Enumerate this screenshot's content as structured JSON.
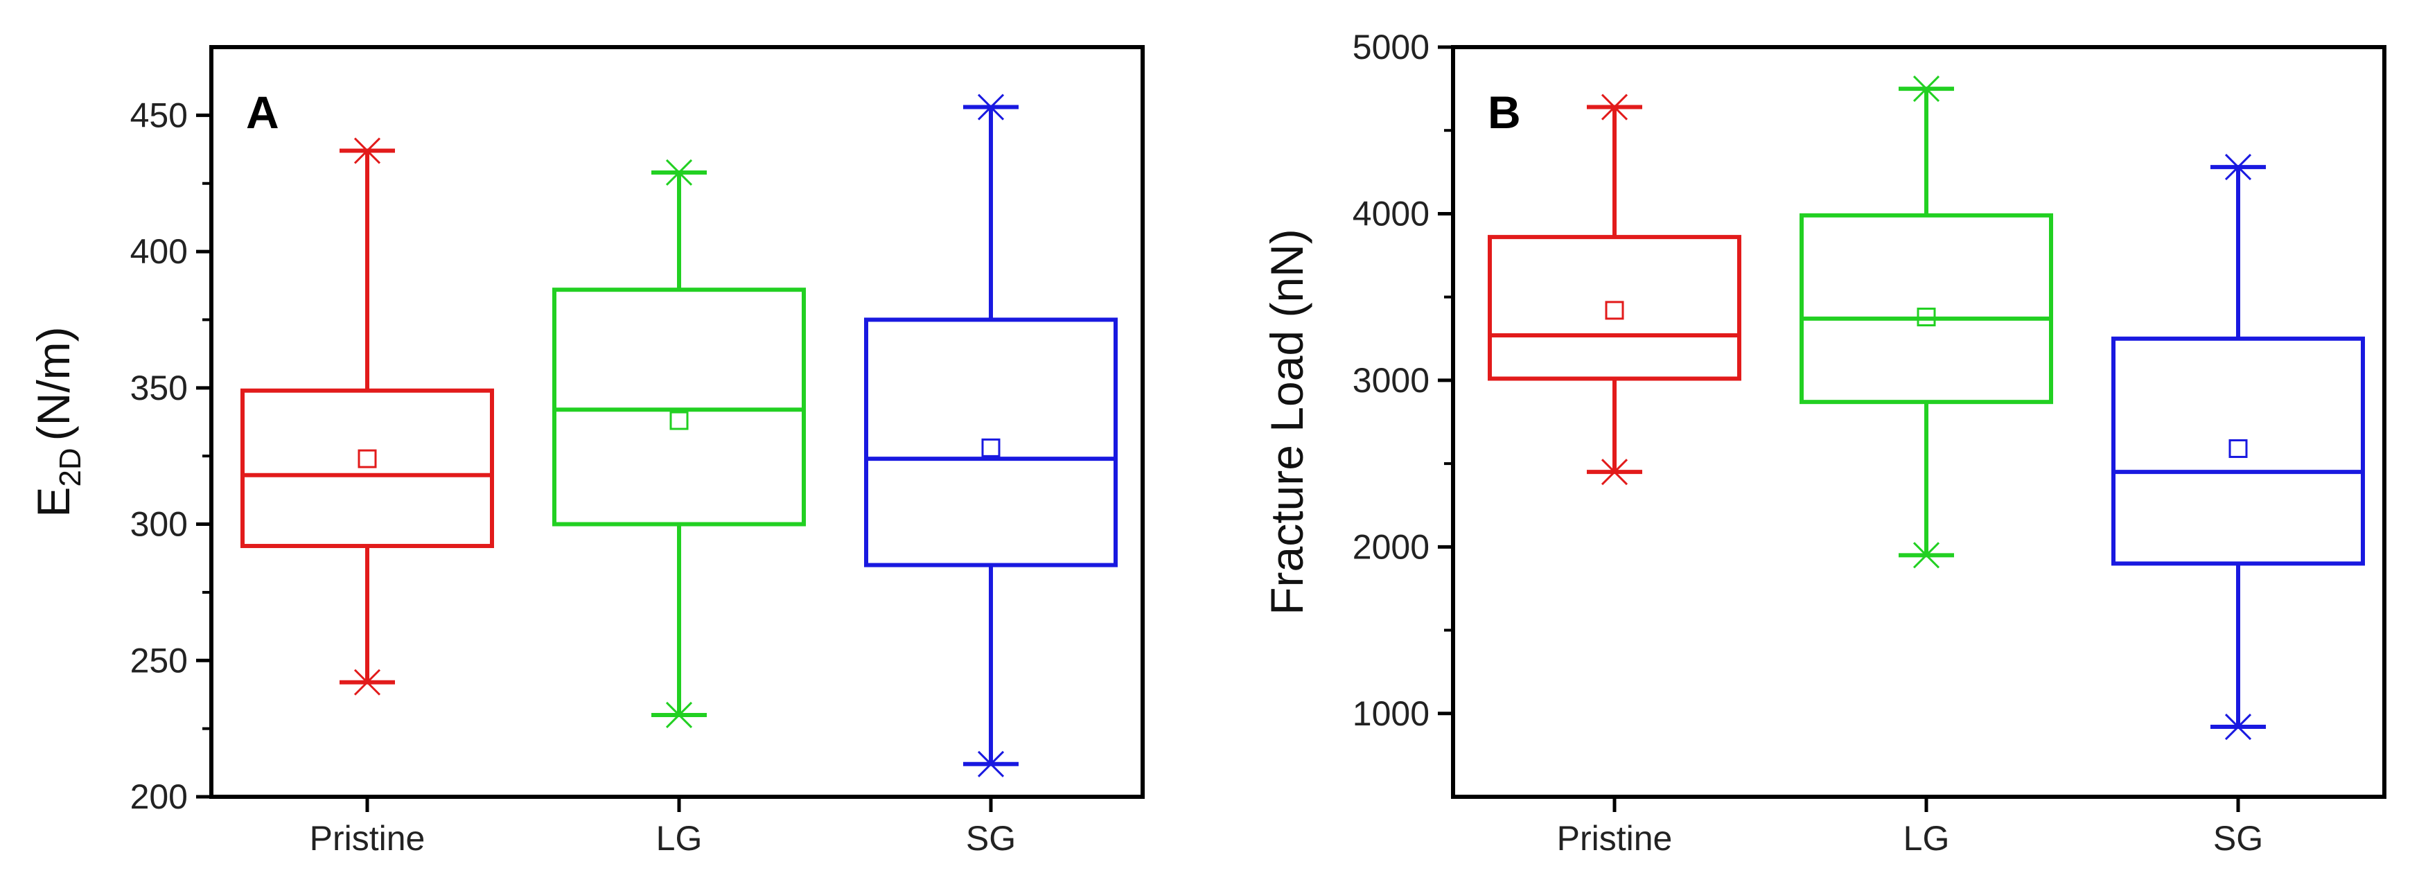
{
  "chart_data": [
    {
      "type": "box",
      "panel": "A",
      "ylabel_main": "E",
      "ylabel_sub": "2D",
      "ylabel_unit": "(N/m)",
      "ylim": [
        200,
        475
      ],
      "yticks": [
        200,
        250,
        300,
        350,
        400,
        450
      ],
      "categories": [
        "Pristine",
        "LG",
        "SG"
      ],
      "colors": [
        "#e21b1b",
        "#22d022",
        "#1919e0"
      ],
      "boxes": [
        {
          "category": "Pristine",
          "min": 242,
          "q1": 292,
          "median": 318,
          "q3": 349,
          "max": 437,
          "mean": 324
        },
        {
          "category": "LG",
          "min": 230,
          "q1": 300,
          "median": 342,
          "q3": 386,
          "max": 429,
          "mean": 338
        },
        {
          "category": "SG",
          "min": 212,
          "q1": 285,
          "median": 324,
          "q3": 375,
          "max": 453,
          "mean": 328
        }
      ]
    },
    {
      "type": "box",
      "panel": "B",
      "ylabel": "Fracture Load (nN)",
      "ylim": [
        500,
        5000
      ],
      "yticks": [
        1000,
        2000,
        3000,
        4000,
        5000
      ],
      "categories": [
        "Pristine",
        "LG",
        "SG"
      ],
      "colors": [
        "#e21b1b",
        "#22d022",
        "#1919e0"
      ],
      "boxes": [
        {
          "category": "Pristine",
          "min": 2450,
          "q1": 3010,
          "median": 3270,
          "q3": 3860,
          "max": 4640,
          "mean": 3420
        },
        {
          "category": "LG",
          "min": 1950,
          "q1": 2870,
          "median": 3370,
          "q3": 3990,
          "max": 4750,
          "mean": 3380
        },
        {
          "category": "SG",
          "min": 920,
          "q1": 1900,
          "median": 2450,
          "q3": 3250,
          "max": 4280,
          "mean": 2590
        }
      ]
    }
  ]
}
